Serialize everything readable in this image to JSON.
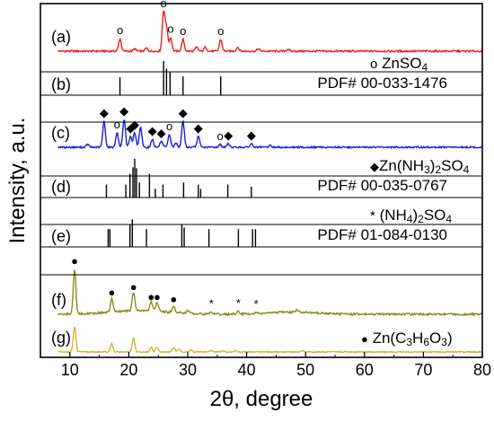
{
  "chart_data": {
    "type": "line",
    "xlabel": "2θ, degree",
    "ylabel": "Intensity, a.u.",
    "xlim": [
      5,
      80
    ],
    "x_ticks": [
      10,
      20,
      30,
      40,
      50,
      60,
      70,
      80
    ],
    "grid": false,
    "panels": [
      {
        "label": "(a)",
        "kind": "pattern",
        "color": "#e8201e",
        "peaks": [
          {
            "x": 18.5,
            "h": 0.32,
            "marker": "o"
          },
          {
            "x": 21.0,
            "h": 0.06
          },
          {
            "x": 23.0,
            "h": 0.08
          },
          {
            "x": 25.9,
            "h": 1.0,
            "marker": "o"
          },
          {
            "x": 26.4,
            "h": 0.6
          },
          {
            "x": 27.1,
            "h": 0.35,
            "marker": "o"
          },
          {
            "x": 29.2,
            "h": 0.3,
            "marker": "o"
          },
          {
            "x": 31.5,
            "h": 0.1
          },
          {
            "x": 33.0,
            "h": 0.1
          },
          {
            "x": 35.6,
            "h": 0.3,
            "marker": "o"
          },
          {
            "x": 38.5,
            "h": 0.1
          },
          {
            "x": 42.0,
            "h": 0.06
          },
          {
            "x": 47.0,
            "h": 0.05
          }
        ]
      },
      {
        "label": "(b)",
        "kind": "reference",
        "phase": [
          "o",
          " ZnSO",
          "4"
        ],
        "pdf": "PDF# 00-033-1476",
        "sticks": [
          {
            "x": 18.5,
            "h": 0.52
          },
          {
            "x": 25.9,
            "h": 1.0
          },
          {
            "x": 26.4,
            "h": 0.78
          },
          {
            "x": 27.0,
            "h": 0.68
          },
          {
            "x": 29.2,
            "h": 0.55
          },
          {
            "x": 35.6,
            "h": 0.55
          }
        ]
      },
      {
        "label": "(c)",
        "kind": "pattern",
        "color": "#1c1cde",
        "peaks": [
          {
            "x": 13.0,
            "h": 0.08
          },
          {
            "x": 15.8,
            "h": 0.72,
            "marker": "◆"
          },
          {
            "x": 18.0,
            "h": 0.4,
            "marker": "o"
          },
          {
            "x": 19.2,
            "h": 0.78,
            "marker": "◆"
          },
          {
            "x": 20.3,
            "h": 0.3,
            "marker": "◆"
          },
          {
            "x": 21.0,
            "h": 0.4,
            "marker": "◆"
          },
          {
            "x": 22.0,
            "h": 0.55
          },
          {
            "x": 24.0,
            "h": 0.22,
            "marker": "◆"
          },
          {
            "x": 25.5,
            "h": 0.16,
            "marker": "◆"
          },
          {
            "x": 26.9,
            "h": 0.35,
            "marker": "o"
          },
          {
            "x": 28.0,
            "h": 0.12
          },
          {
            "x": 29.2,
            "h": 0.72,
            "marker": "◆"
          },
          {
            "x": 31.8,
            "h": 0.3,
            "marker": "◆"
          },
          {
            "x": 35.5,
            "h": 0.08,
            "marker": "o"
          },
          {
            "x": 36.9,
            "h": 0.1,
            "marker": "◆"
          },
          {
            "x": 40.8,
            "h": 0.1,
            "marker": "◆"
          },
          {
            "x": 44.0,
            "h": 0.05
          }
        ]
      },
      {
        "label": "(d)",
        "kind": "reference",
        "phase": [
          "◆",
          "Zn(NH",
          "3",
          ")",
          "2",
          "SO",
          "4"
        ],
        "pdf": "PDF# 00-035-0767",
        "sticks": [
          {
            "x": 16.2,
            "h": 0.3
          },
          {
            "x": 19.5,
            "h": 0.3
          },
          {
            "x": 20.2,
            "h": 0.55
          },
          {
            "x": 20.7,
            "h": 0.7
          },
          {
            "x": 21.0,
            "h": 0.9
          },
          {
            "x": 21.3,
            "h": 0.68
          },
          {
            "x": 21.8,
            "h": 0.35
          },
          {
            "x": 23.5,
            "h": 0.55
          },
          {
            "x": 24.5,
            "h": 0.2
          },
          {
            "x": 25.8,
            "h": 0.3
          },
          {
            "x": 29.3,
            "h": 0.35
          },
          {
            "x": 31.8,
            "h": 0.3
          },
          {
            "x": 32.2,
            "h": 0.2
          },
          {
            "x": 36.8,
            "h": 0.3
          },
          {
            "x": 40.8,
            "h": 0.25
          }
        ]
      },
      {
        "label": "(e)",
        "kind": "reference",
        "phase": [
          "*",
          " (NH",
          "4",
          ")",
          "2",
          "SO",
          "4"
        ],
        "pdf": "PDF# 01-084-0130",
        "sticks": [
          {
            "x": 16.5,
            "h": 0.55
          },
          {
            "x": 16.8,
            "h": 0.55
          },
          {
            "x": 20.2,
            "h": 0.7
          },
          {
            "x": 20.6,
            "h": 0.85
          },
          {
            "x": 23.0,
            "h": 0.55
          },
          {
            "x": 29.0,
            "h": 0.7
          },
          {
            "x": 29.4,
            "h": 0.6
          },
          {
            "x": 33.6,
            "h": 0.55
          },
          {
            "x": 38.6,
            "h": 0.55
          },
          {
            "x": 41.0,
            "h": 0.55
          },
          {
            "x": 41.5,
            "h": 0.55
          }
        ]
      },
      {
        "label": "(f)",
        "kind": "pattern",
        "color": "#8a8c1a",
        "peaks": [
          {
            "x": 10.8,
            "h": 1.0,
            "marker": "●"
          },
          {
            "x": 17.1,
            "h": 0.3,
            "marker": "●"
          },
          {
            "x": 20.8,
            "h": 0.42,
            "marker": "●"
          },
          {
            "x": 23.8,
            "h": 0.2,
            "marker": "●"
          },
          {
            "x": 24.8,
            "h": 0.2,
            "marker": "●"
          },
          {
            "x": 27.6,
            "h": 0.15,
            "marker": "●"
          },
          {
            "x": 30.0,
            "h": 0.06
          },
          {
            "x": 34.0,
            "h": 0.05,
            "marker": "*"
          },
          {
            "x": 38.6,
            "h": 0.06,
            "marker": "*"
          },
          {
            "x": 41.6,
            "h": 0.04,
            "marker": "*"
          },
          {
            "x": 48.5,
            "h": 0.04
          }
        ]
      },
      {
        "label": "(g)",
        "kind": "pattern",
        "color": "#d4b23a",
        "peaks": [
          {
            "x": 10.8,
            "h": 1.0
          },
          {
            "x": 17.1,
            "h": 0.33
          },
          {
            "x": 20.8,
            "h": 0.55
          },
          {
            "x": 23.8,
            "h": 0.18
          },
          {
            "x": 24.8,
            "h": 0.18
          },
          {
            "x": 27.6,
            "h": 0.16
          },
          {
            "x": 28.5,
            "h": 0.12
          },
          {
            "x": 30.5,
            "h": 0.08
          },
          {
            "x": 34.0,
            "h": 0.06
          },
          {
            "x": 36.0,
            "h": 0.05
          },
          {
            "x": 38.0,
            "h": 0.05
          },
          {
            "x": 49.5,
            "h": 0.06
          }
        ]
      }
    ],
    "annotations": [
      {
        "panel": 6,
        "phase": [
          "●",
          " Zn(C",
          "3",
          "H",
          "6",
          "O",
          "3",
          ")"
        ]
      }
    ]
  }
}
